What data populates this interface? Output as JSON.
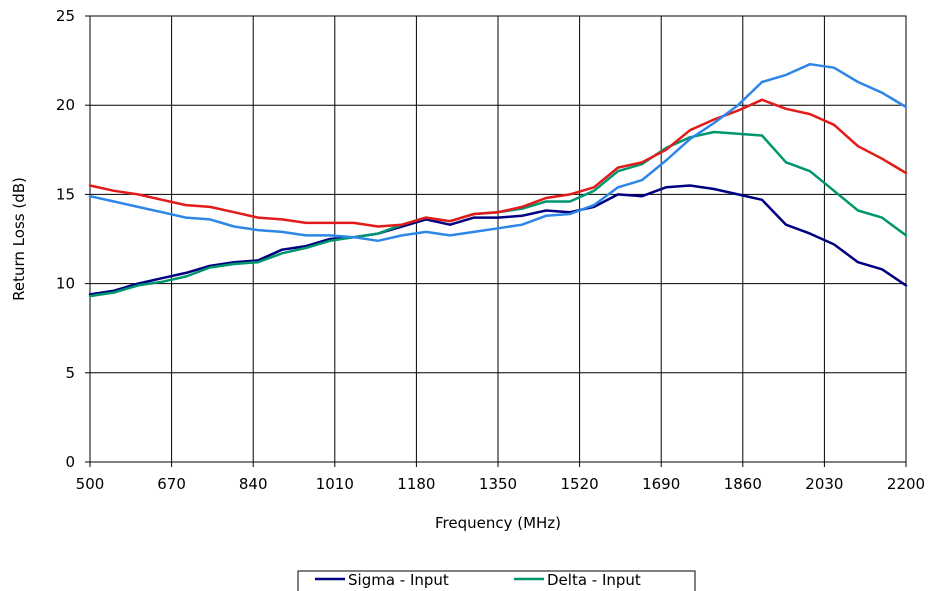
{
  "chart_data": {
    "type": "line",
    "title": "",
    "xlabel": "Frequency (MHz)",
    "ylabel": "Return Loss (dB)",
    "xlim": [
      500,
      2200
    ],
    "ylim": [
      0,
      25
    ],
    "x_ticks": [
      "500",
      "670",
      "840",
      "1010",
      "1180",
      "1350",
      "1520",
      "1690",
      "1860",
      "2030",
      "2200"
    ],
    "y_ticks": [
      "0",
      "5",
      "10",
      "15",
      "20",
      "25"
    ],
    "grid": true,
    "legend_position": "bottom",
    "legend_entries": [
      "Sigma - Input",
      "Delta - Input"
    ],
    "series": [
      {
        "name": "Sigma - Input",
        "color": "#000080",
        "x": [
          500,
          550,
          600,
          650,
          700,
          750,
          800,
          850,
          900,
          950,
          1000,
          1050,
          1100,
          1150,
          1200,
          1250,
          1300,
          1350,
          1400,
          1450,
          1500,
          1550,
          1600,
          1650,
          1700,
          1750,
          1800,
          1850,
          1900,
          1950,
          2000,
          2050,
          2100,
          2150,
          2200
        ],
        "y": [
          9.4,
          9.6,
          10.0,
          10.3,
          10.6,
          11.0,
          11.2,
          11.3,
          11.9,
          12.1,
          12.5,
          12.6,
          12.8,
          13.2,
          13.6,
          13.3,
          13.7,
          13.7,
          13.8,
          14.1,
          14.0,
          14.3,
          15.0,
          14.9,
          15.4,
          15.5,
          15.3,
          15.0,
          14.7,
          13.3,
          12.8,
          12.2,
          11.2,
          10.8,
          9.9
        ]
      },
      {
        "name": "",
        "color": "#00966E",
        "x": [
          500,
          550,
          600,
          650,
          700,
          750,
          800,
          850,
          900,
          950,
          1000,
          1050,
          1100,
          1150,
          1200,
          1250,
          1300,
          1350,
          1400,
          1450,
          1500,
          1550,
          1600,
          1650,
          1700,
          1750,
          1800,
          1850,
          1900,
          1950,
          2000,
          2050,
          2100,
          2150,
          2200
        ],
        "y": [
          9.3,
          9.5,
          9.9,
          10.1,
          10.4,
          10.9,
          11.1,
          11.2,
          11.7,
          12.0,
          12.4,
          12.6,
          12.8,
          13.3,
          13.7,
          13.5,
          13.9,
          14.0,
          14.2,
          14.6,
          14.6,
          15.2,
          16.3,
          16.7,
          17.6,
          18.2,
          18.5,
          18.4,
          18.3,
          16.8,
          16.3,
          15.2,
          14.1,
          13.7,
          12.7
        ]
      },
      {
        "name": "Delta - Input",
        "color": "#E31A1A",
        "x": [
          500,
          550,
          600,
          650,
          700,
          750,
          800,
          850,
          900,
          950,
          1000,
          1050,
          1100,
          1150,
          1200,
          1250,
          1300,
          1350,
          1400,
          1450,
          1500,
          1550,
          1600,
          1650,
          1700,
          1750,
          1800,
          1850,
          1900,
          1950,
          2000,
          2050,
          2100,
          2150,
          2200
        ],
        "y": [
          15.5,
          15.2,
          15.0,
          14.7,
          14.4,
          14.3,
          14.0,
          13.7,
          13.6,
          13.4,
          13.4,
          13.4,
          13.2,
          13.3,
          13.7,
          13.5,
          13.9,
          14.0,
          14.3,
          14.8,
          15.0,
          15.4,
          16.5,
          16.8,
          17.5,
          18.6,
          19.2,
          19.7,
          20.3,
          19.8,
          19.5,
          18.9,
          17.7,
          17.0,
          16.2
        ]
      },
      {
        "name": "",
        "color": "#2E86E8",
        "x": [
          500,
          550,
          600,
          650,
          700,
          750,
          800,
          850,
          900,
          950,
          1000,
          1050,
          1100,
          1150,
          1200,
          1250,
          1300,
          1350,
          1400,
          1450,
          1500,
          1550,
          1600,
          1650,
          1700,
          1750,
          1800,
          1850,
          1900,
          1950,
          2000,
          2050,
          2100,
          2150,
          2200
        ],
        "y": [
          14.9,
          14.6,
          14.3,
          14.0,
          13.7,
          13.6,
          13.2,
          13.0,
          12.9,
          12.7,
          12.7,
          12.6,
          12.4,
          12.7,
          12.9,
          12.7,
          12.9,
          13.1,
          13.3,
          13.8,
          13.9,
          14.4,
          15.4,
          15.8,
          16.9,
          18.1,
          19.0,
          20.0,
          21.3,
          21.7,
          22.3,
          22.1,
          21.3,
          20.7,
          19.9
        ]
      }
    ]
  }
}
